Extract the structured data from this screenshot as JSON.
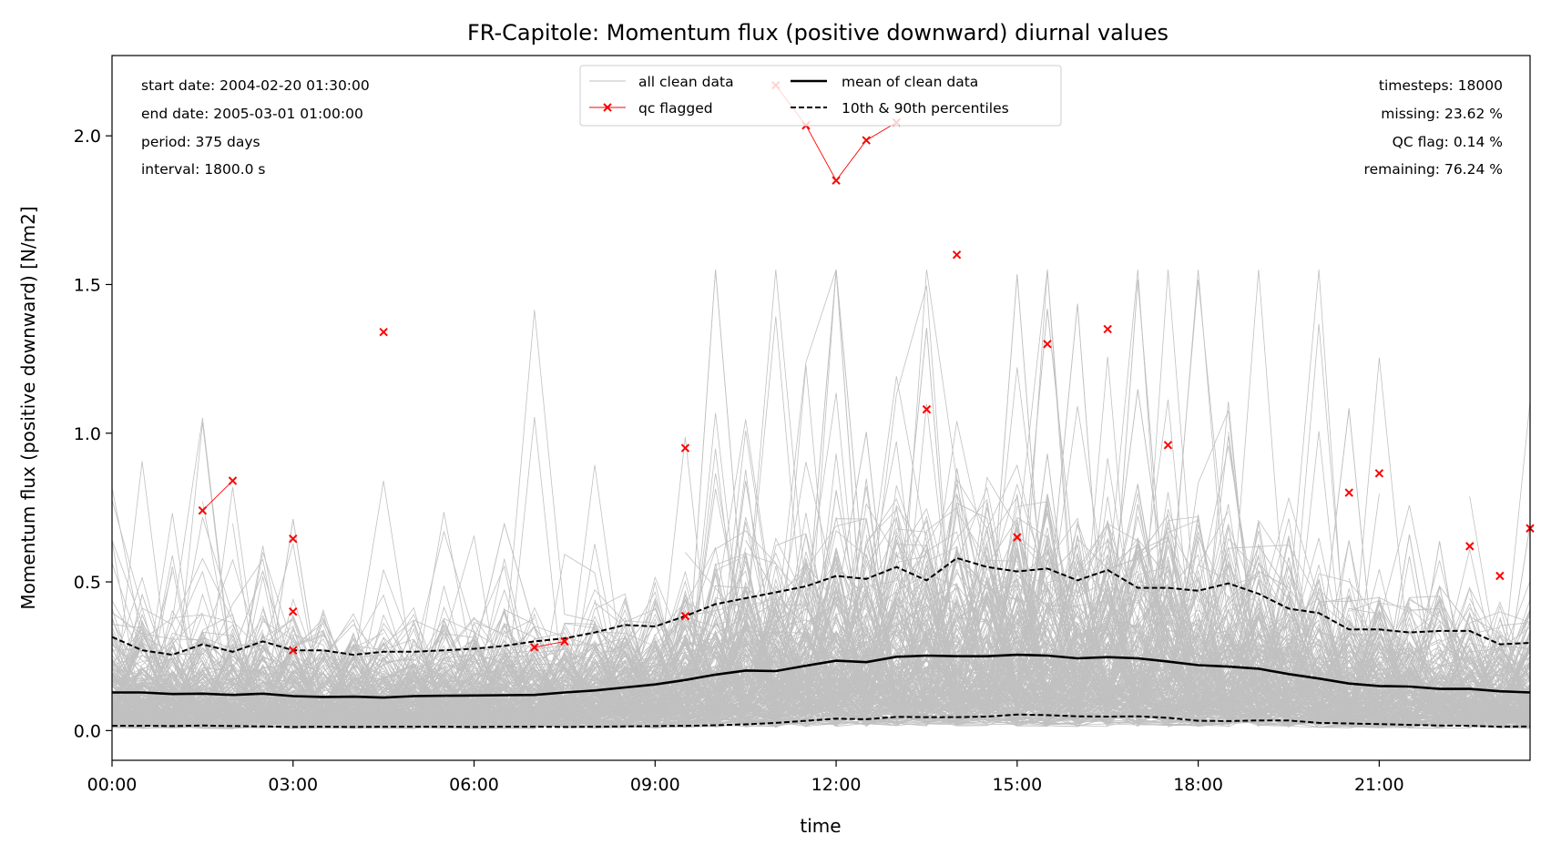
{
  "chart_data": {
    "type": "line",
    "title": "FR-Capitole: Momentum flux (positive downward) diurnal values",
    "xlabel": "time",
    "ylabel": "Momentum flux (positive downward) [N/m2]",
    "xlim": [
      0,
      23.5
    ],
    "ylim": [
      -0.1,
      2.27
    ],
    "grid": false,
    "legend_position": "top-center",
    "x_ticks": [
      {
        "value": 0,
        "label": "00:00"
      },
      {
        "value": 3,
        "label": "03:00"
      },
      {
        "value": 6,
        "label": "06:00"
      },
      {
        "value": 9,
        "label": "09:00"
      },
      {
        "value": 12,
        "label": "12:00"
      },
      {
        "value": 15,
        "label": "15:00"
      },
      {
        "value": 18,
        "label": "18:00"
      },
      {
        "value": 21,
        "label": "21:00"
      }
    ],
    "y_ticks": [
      {
        "value": 0.0,
        "label": "0.0"
      },
      {
        "value": 0.5,
        "label": "0.5"
      },
      {
        "value": 1.0,
        "label": "1.0"
      },
      {
        "value": 1.5,
        "label": "1.5"
      },
      {
        "value": 2.0,
        "label": "2.0"
      }
    ],
    "legend": [
      {
        "label": "all clean data",
        "style": "thin-line",
        "color": "#c0c0c0"
      },
      {
        "label": "qc flagged",
        "style": "line-x-marker",
        "color": "#ff0000"
      },
      {
        "label": "mean of clean data",
        "style": "solid-line",
        "color": "#000000"
      },
      {
        "label": "10th & 90th percentiles",
        "style": "dashed-line",
        "color": "#000000"
      }
    ],
    "info_left": [
      "start date: 2004-02-20 01:30:00",
      "end date: 2005-03-01 01:00:00",
      "period: 375 days",
      "interval: 1800.0 s"
    ],
    "info_right": [
      "timesteps: 18000",
      "missing: 23.62 %",
      "QC flag: 0.14 %",
      "remaining: 76.24 %"
    ],
    "x": [
      0,
      0.5,
      1,
      1.5,
      2,
      2.5,
      3,
      3.5,
      4,
      4.5,
      5,
      5.5,
      6,
      6.5,
      7,
      7.5,
      8,
      8.5,
      9,
      9.5,
      10,
      10.5,
      11,
      11.5,
      12,
      12.5,
      13,
      13.5,
      14,
      14.5,
      15,
      15.5,
      16,
      16.5,
      17,
      17.5,
      18,
      18.5,
      19,
      19.5,
      20,
      20.5,
      21,
      21.5,
      22,
      22.5,
      23,
      23.5
    ],
    "series": [
      {
        "name": "mean of clean data",
        "color": "#000000",
        "style": "solid",
        "values": [
          0.128,
          0.128,
          0.123,
          0.124,
          0.12,
          0.124,
          0.116,
          0.113,
          0.114,
          0.111,
          0.116,
          0.117,
          0.118,
          0.119,
          0.12,
          0.128,
          0.135,
          0.145,
          0.155,
          0.17,
          0.188,
          0.202,
          0.2,
          0.218,
          0.235,
          0.23,
          0.248,
          0.252,
          0.25,
          0.25,
          0.255,
          0.252,
          0.243,
          0.247,
          0.243,
          0.232,
          0.22,
          0.215,
          0.208,
          0.19,
          0.175,
          0.158,
          0.15,
          0.148,
          0.14,
          0.14,
          0.132,
          0.128
        ]
      },
      {
        "name": "90th percentile",
        "color": "#000000",
        "style": "dashed",
        "values": [
          0.315,
          0.27,
          0.255,
          0.29,
          0.265,
          0.3,
          0.27,
          0.27,
          0.255,
          0.265,
          0.265,
          0.27,
          0.275,
          0.285,
          0.3,
          0.31,
          0.33,
          0.355,
          0.35,
          0.385,
          0.425,
          0.445,
          0.465,
          0.485,
          0.52,
          0.51,
          0.55,
          0.505,
          0.58,
          0.55,
          0.535,
          0.545,
          0.505,
          0.54,
          0.48,
          0.48,
          0.47,
          0.495,
          0.46,
          0.41,
          0.395,
          0.34,
          0.34,
          0.33,
          0.335,
          0.335,
          0.29,
          0.295
        ]
      },
      {
        "name": "10th percentile",
        "color": "#000000",
        "style": "dashed",
        "values": [
          0.016,
          0.016,
          0.015,
          0.017,
          0.015,
          0.014,
          0.012,
          0.013,
          0.012,
          0.013,
          0.013,
          0.013,
          0.012,
          0.013,
          0.013,
          0.012,
          0.013,
          0.014,
          0.015,
          0.016,
          0.018,
          0.021,
          0.026,
          0.033,
          0.04,
          0.038,
          0.046,
          0.045,
          0.045,
          0.047,
          0.054,
          0.052,
          0.048,
          0.047,
          0.048,
          0.043,
          0.033,
          0.032,
          0.034,
          0.034,
          0.026,
          0.024,
          0.022,
          0.019,
          0.017,
          0.016,
          0.013,
          0.014
        ]
      }
    ],
    "qc_flagged": [
      [
        1.5,
        0.74
      ],
      [
        2.0,
        0.84
      ],
      [
        3.0,
        0.645
      ],
      [
        3.0,
        0.4
      ],
      [
        3.0,
        0.27
      ],
      [
        4.5,
        1.34
      ],
      [
        7.0,
        0.28
      ],
      [
        7.5,
        0.3
      ],
      [
        9.5,
        0.95
      ],
      [
        9.5,
        0.385
      ],
      [
        11.0,
        2.17
      ],
      [
        11.5,
        2.035
      ],
      [
        12.0,
        1.85
      ],
      [
        12.5,
        1.985
      ],
      [
        13.0,
        2.045
      ],
      [
        13.5,
        1.08
      ],
      [
        14.0,
        1.6
      ],
      [
        15.0,
        0.65
      ],
      [
        15.5,
        1.3
      ],
      [
        16.5,
        1.35
      ],
      [
        17.5,
        0.96
      ],
      [
        20.5,
        0.8
      ],
      [
        21.0,
        0.865
      ],
      [
        22.5,
        0.62
      ],
      [
        23.0,
        0.52
      ],
      [
        23.5,
        0.68
      ]
    ],
    "qc_flagged_segments": [
      [
        [
          1.5,
          0.74
        ],
        [
          2.0,
          0.84
        ]
      ],
      [
        [
          7.0,
          0.28
        ],
        [
          7.5,
          0.3
        ]
      ],
      [
        [
          11.0,
          2.17
        ],
        [
          11.5,
          2.035
        ],
        [
          12.0,
          1.85
        ],
        [
          12.5,
          1.985
        ],
        [
          13.0,
          2.045
        ]
      ]
    ]
  }
}
